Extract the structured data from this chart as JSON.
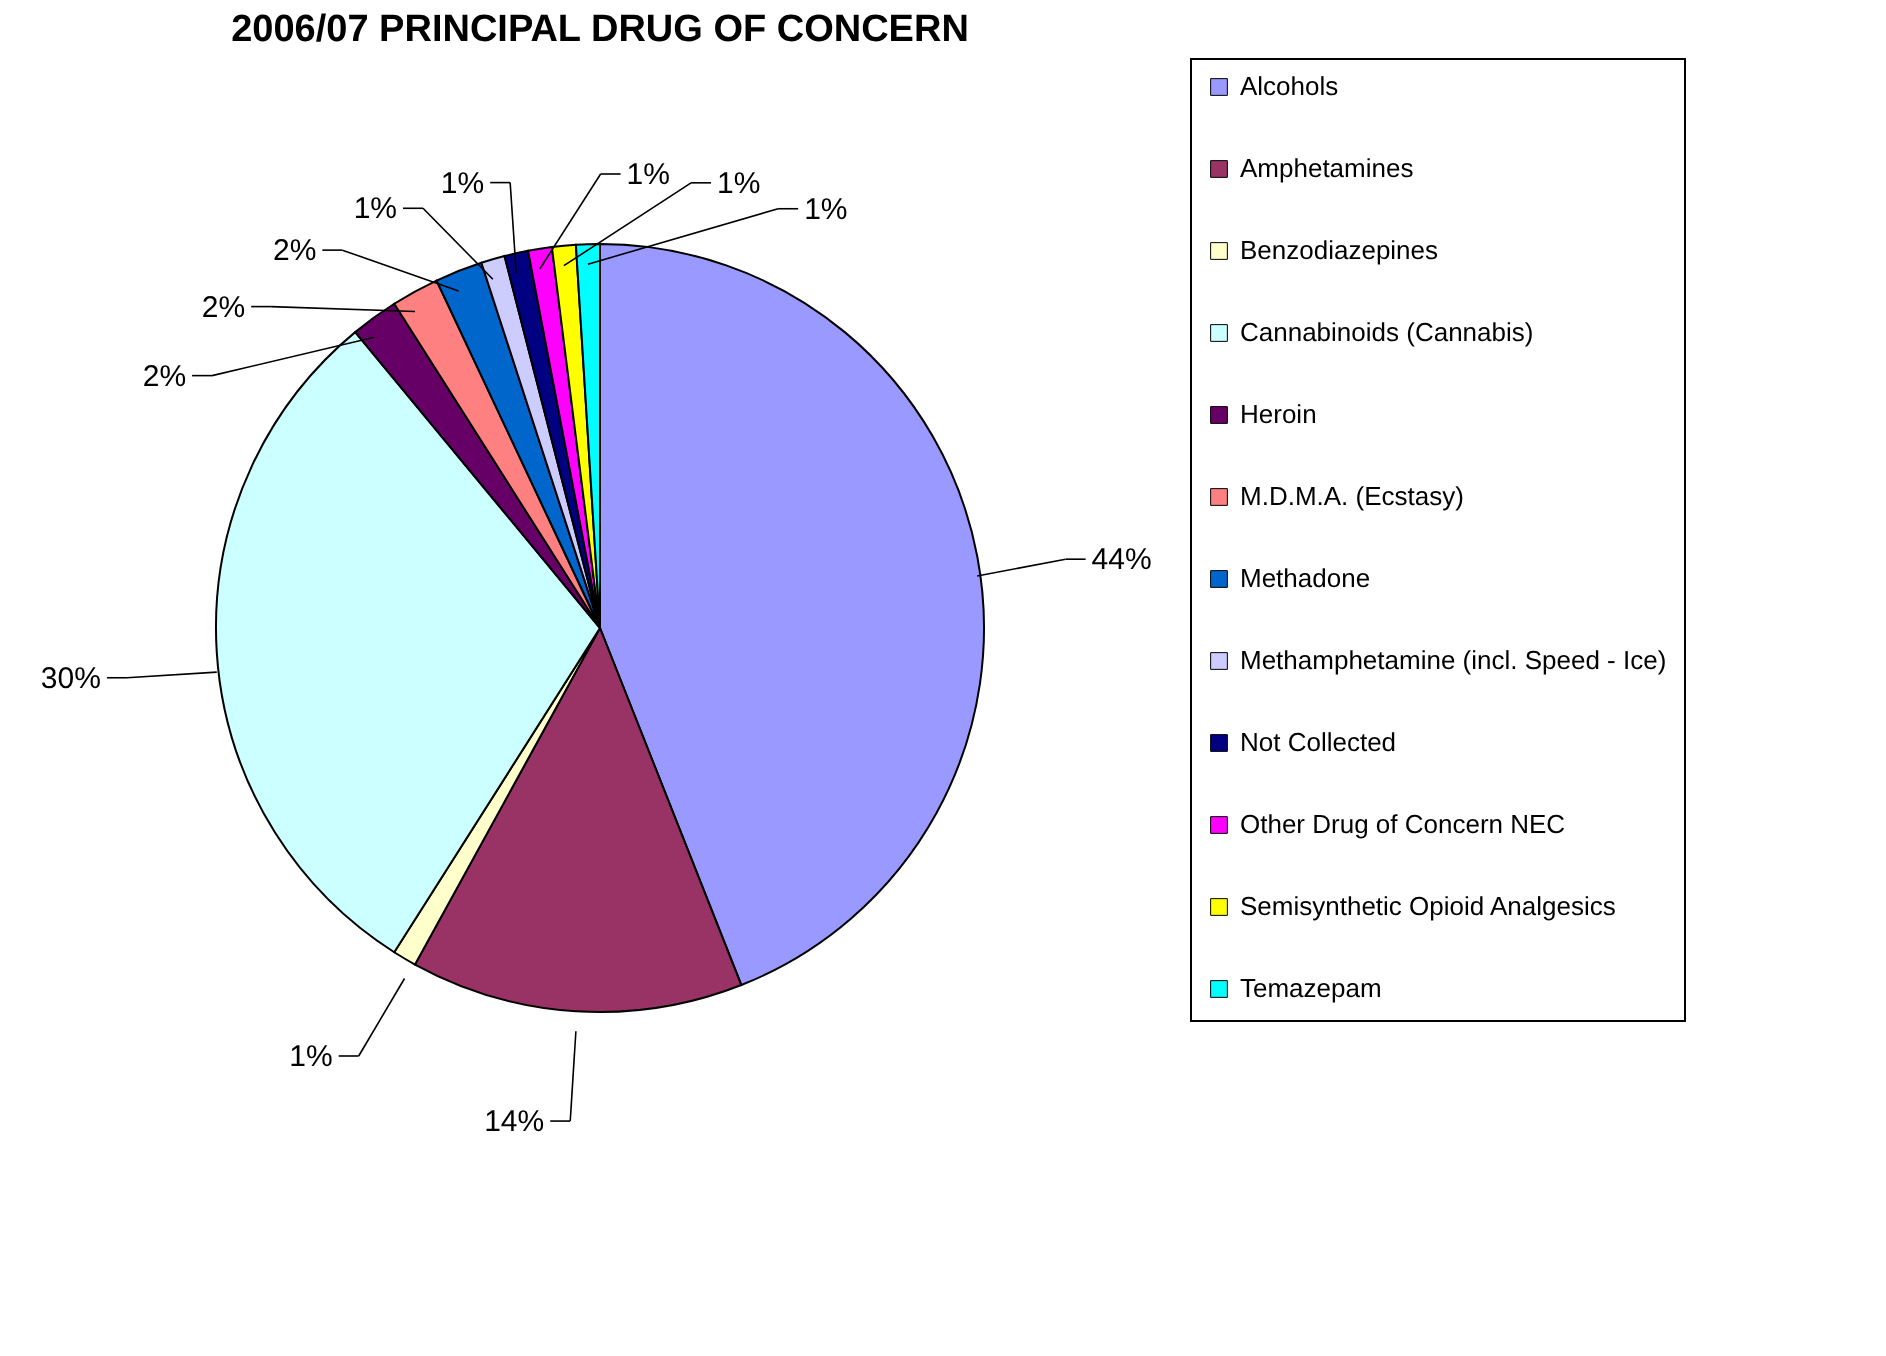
{
  "chart_data": {
    "type": "pie",
    "title": "2006/07 PRINCIPAL DRUG OF CONCERN",
    "categories": [
      "Alcohols",
      "Amphetamines",
      "Benzodiazepines",
      "Cannabinoids (Cannabis)",
      "Heroin",
      "M.D.M.A. (Ecstasy)",
      "Methadone",
      "Methamphetamine (incl. Speed - Ice)",
      "Not Collected",
      "Other Drug of Concern  NEC",
      "Semisynthetic Opioid Analgesics",
      "Temazepam"
    ],
    "values": [
      44,
      14,
      1,
      30,
      2,
      2,
      2,
      1,
      1,
      1,
      1,
      1
    ],
    "value_labels": [
      "44%",
      "14%",
      "1%",
      "30%",
      "2%",
      "2%",
      "2%",
      "1%",
      "1%",
      "1%",
      "1%",
      "1%"
    ],
    "colors": [
      "#9999ff",
      "#993366",
      "#ffffcc",
      "#ccffff",
      "#660066",
      "#ff8080",
      "#0066cc",
      "#ccccff",
      "#000080",
      "#ff00ff",
      "#ffff00",
      "#00ffff"
    ],
    "legend": "right"
  }
}
